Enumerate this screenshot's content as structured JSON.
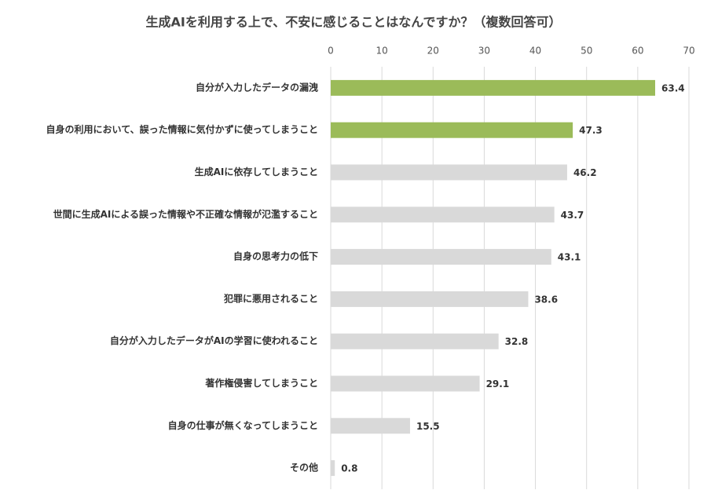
{
  "chart_data": {
    "type": "bar",
    "orientation": "horizontal",
    "title": "生成AIを利用する上で、不安に感じることはなんですか？（複数回答可）",
    "categories": [
      "自分が入力したデータの漏洩",
      "自身の利用において、誤った情報に気付かずに使ってしまうこと",
      "生成AIに依存してしまうこと",
      "世間に生成AIによる誤った情報や不正確な情報が氾濫すること",
      "自身の思考力の低下",
      "犯罪に悪用されること",
      "自分が入力したデータがAIの学習に使われること",
      "著作権侵害してしまうこと",
      "自身の仕事が無くなってしまうこと",
      "その他"
    ],
    "values": [
      63.4,
      47.3,
      46.2,
      43.7,
      43.1,
      38.6,
      32.8,
      29.1,
      15.5,
      0.8
    ],
    "colors": [
      "#9bbb59",
      "#9bbb59",
      "#d9d9d9",
      "#d9d9d9",
      "#d9d9d9",
      "#d9d9d9",
      "#d9d9d9",
      "#d9d9d9",
      "#d9d9d9",
      "#d9d9d9"
    ],
    "xlim": [
      0,
      70
    ],
    "xticks": [
      0,
      10,
      20,
      30,
      40,
      50,
      60,
      70
    ],
    "grid": true
  }
}
